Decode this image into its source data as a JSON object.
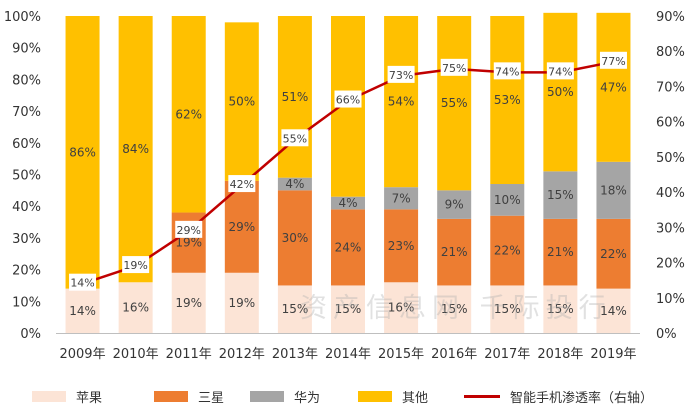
{
  "chart_data": {
    "type": "bar",
    "stacked": true,
    "categories": [
      "2009年",
      "2010年",
      "2011年",
      "2012年",
      "2013年",
      "2014年",
      "2015年",
      "2016年",
      "2017年",
      "2018年",
      "2019年"
    ],
    "series": [
      {
        "name": "苹果",
        "color": "#fce4d6",
        "values": [
          14,
          16,
          19,
          19,
          15,
          15,
          16,
          15,
          15,
          15,
          14
        ]
      },
      {
        "name": "三星",
        "color": "#ed7d31",
        "values": [
          0,
          0,
          19,
          29,
          30,
          24,
          23,
          21,
          22,
          21,
          22
        ]
      },
      {
        "name": "华为",
        "color": "#a5a5a5",
        "values": [
          0,
          0,
          0,
          0,
          4,
          4,
          7,
          9,
          10,
          15,
          18
        ]
      },
      {
        "name": "其他",
        "color": "#ffc000",
        "values": [
          86,
          84,
          62,
          50,
          51,
          57,
          54,
          55,
          53,
          50,
          47
        ]
      }
    ],
    "segment_labels": {
      "苹果": [
        "14%",
        "16%",
        "19%",
        "19%",
        "15%",
        "15%",
        "16%",
        "15%",
        "15%",
        "15%",
        "14%"
      ],
      "三星": [
        "",
        "",
        "19%",
        "29%",
        "30%",
        "24%",
        "23%",
        "21%",
        "22%",
        "21%",
        "22%"
      ],
      "华为": [
        "",
        "",
        "",
        "",
        "4%",
        "4%",
        "7%",
        "9%",
        "10%",
        "15%",
        "18%"
      ],
      "其他": [
        "86%",
        "84%",
        "62%",
        "50%",
        "51%",
        "",
        "54%",
        "55%",
        "53%",
        "50%",
        "47%"
      ]
    },
    "line_series": {
      "name": "智能手机渗透率（右轴）",
      "color": "#c00000",
      "axis": "right",
      "values": [
        14,
        19,
        29,
        42,
        55,
        66,
        73,
        75,
        74,
        74,
        77
      ],
      "labels": [
        "14%",
        "19%",
        "29%",
        "42%",
        "55%",
        "66%",
        "73%",
        "75%",
        "74%",
        "74%",
        "77%"
      ]
    },
    "y_left": {
      "min": 0,
      "max": 100,
      "step": 10,
      "ticks": [
        "0%",
        "10%",
        "20%",
        "30%",
        "40%",
        "50%",
        "60%",
        "70%",
        "80%",
        "90%",
        "100%"
      ]
    },
    "y_right": {
      "min": 0,
      "max": 90,
      "step": 10,
      "ticks": [
        "0%",
        "10%",
        "20%",
        "30%",
        "40%",
        "50%",
        "60%",
        "70%",
        "80%",
        "90%"
      ]
    },
    "legend_position": "bottom",
    "grid": false
  },
  "watermark": "资产信息网 千际投行"
}
